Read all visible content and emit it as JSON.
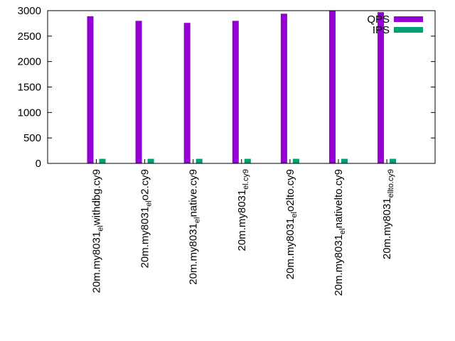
{
  "chart_data": {
    "type": "bar",
    "categories": [
      "20m.my8031_el_withdbg.cy9",
      "20m.my8031_el_o2.cy9",
      "20m.my8031_el_native.cy9",
      "20m.my8031_el.cy9",
      "20m.my8031_el_o2lto.cy9",
      "20m.my8031_el_nativelto.cy9",
      "20m.my8031_ellto.cy9"
    ],
    "category_labels": [
      {
        "parts": [
          [
            "20m.my8031",
            ""
          ],
          [
            "el",
            "sub"
          ],
          [
            "w",
            ""
          ],
          [
            "ithdbg.cy9",
            ""
          ]
        ]
      },
      {
        "parts": [
          [
            "20m.my8031",
            ""
          ],
          [
            "el",
            "sub"
          ],
          [
            "o",
            ""
          ],
          [
            "2.cy9",
            ""
          ]
        ]
      },
      {
        "parts": [
          [
            "20m.my8031",
            ""
          ],
          [
            "el",
            "sub"
          ],
          [
            "n",
            ""
          ],
          [
            "ative.cy9",
            ""
          ]
        ]
      },
      {
        "parts": [
          [
            "20m.my8031",
            ""
          ],
          [
            "el.cy9",
            "sub"
          ]
        ]
      },
      {
        "parts": [
          [
            "20m.my8031",
            ""
          ],
          [
            "el",
            "sub"
          ],
          [
            "o",
            ""
          ],
          [
            "2lto.cy9",
            ""
          ]
        ]
      },
      {
        "parts": [
          [
            "20m.my8031",
            ""
          ],
          [
            "el",
            "sub"
          ],
          [
            "n",
            ""
          ],
          [
            "ativelto.cy9",
            ""
          ]
        ]
      },
      {
        "parts": [
          [
            "20m.my8031",
            ""
          ],
          [
            "ellto.cy9",
            "sub"
          ]
        ]
      }
    ],
    "series": [
      {
        "name": "QPS",
        "color": "#9400d3",
        "values": [
          2890,
          2800,
          2760,
          2800,
          2940,
          3000,
          2970
        ]
      },
      {
        "name": "IPS",
        "color": "#009e73",
        "values": [
          90,
          90,
          90,
          90,
          90,
          90,
          90
        ]
      }
    ],
    "ylim": [
      0,
      3000
    ],
    "yticks": [
      0,
      500,
      1000,
      1500,
      2000,
      2500,
      3000
    ],
    "legend_position": "top-right",
    "grid": false
  }
}
